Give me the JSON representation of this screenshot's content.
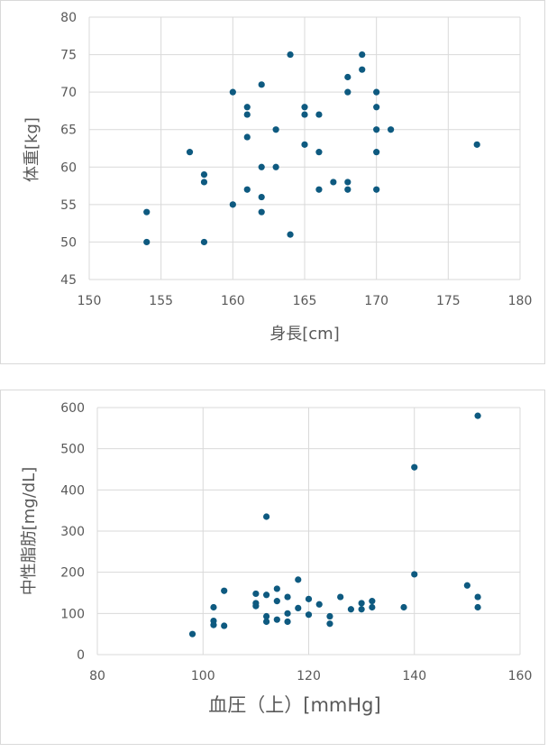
{
  "colors": {
    "marker": "#0e5a80",
    "grid": "#d9d9d9",
    "text": "#595959"
  },
  "chart_data": [
    {
      "type": "scatter",
      "title": "",
      "xlabel": "身長[cm]",
      "ylabel": "体重[kg]",
      "xlim": [
        150,
        180
      ],
      "ylim": [
        45,
        80
      ],
      "xticks": [
        "150",
        "155",
        "160",
        "165",
        "170",
        "175",
        "180"
      ],
      "yticks": [
        "45",
        "50",
        "55",
        "60",
        "65",
        "70",
        "75",
        "80"
      ],
      "grid": true,
      "legend": "none",
      "points": [
        {
          "x": 154,
          "y": 54
        },
        {
          "x": 154,
          "y": 50
        },
        {
          "x": 157,
          "y": 62
        },
        {
          "x": 158,
          "y": 59
        },
        {
          "x": 158,
          "y": 58
        },
        {
          "x": 158,
          "y": 50
        },
        {
          "x": 160,
          "y": 70
        },
        {
          "x": 160,
          "y": 55
        },
        {
          "x": 161,
          "y": 68
        },
        {
          "x": 161,
          "y": 67
        },
        {
          "x": 161,
          "y": 64
        },
        {
          "x": 161,
          "y": 57
        },
        {
          "x": 162,
          "y": 71
        },
        {
          "x": 162,
          "y": 60
        },
        {
          "x": 162,
          "y": 56
        },
        {
          "x": 162,
          "y": 54
        },
        {
          "x": 163,
          "y": 65
        },
        {
          "x": 163,
          "y": 60
        },
        {
          "x": 164,
          "y": 75
        },
        {
          "x": 164,
          "y": 51
        },
        {
          "x": 165,
          "y": 68
        },
        {
          "x": 165,
          "y": 67
        },
        {
          "x": 165,
          "y": 63
        },
        {
          "x": 166,
          "y": 67
        },
        {
          "x": 166,
          "y": 62
        },
        {
          "x": 166,
          "y": 57
        },
        {
          "x": 167,
          "y": 58
        },
        {
          "x": 168,
          "y": 72
        },
        {
          "x": 168,
          "y": 70
        },
        {
          "x": 168,
          "y": 58
        },
        {
          "x": 168,
          "y": 57
        },
        {
          "x": 169,
          "y": 75
        },
        {
          "x": 169,
          "y": 73
        },
        {
          "x": 170,
          "y": 70
        },
        {
          "x": 170,
          "y": 68
        },
        {
          "x": 170,
          "y": 65
        },
        {
          "x": 170,
          "y": 62
        },
        {
          "x": 170,
          "y": 57
        },
        {
          "x": 171,
          "y": 65
        },
        {
          "x": 177,
          "y": 63
        }
      ]
    },
    {
      "type": "scatter",
      "title": "",
      "xlabel": "血圧（上）[mmHg]",
      "ylabel": "中性脂肪[mg/dL]",
      "xlim": [
        80,
        160
      ],
      "ylim": [
        0,
        600
      ],
      "xticks": [
        "80",
        "100",
        "120",
        "140",
        "160"
      ],
      "yticks": [
        "0",
        "100",
        "200",
        "300",
        "400",
        "500",
        "600"
      ],
      "grid": true,
      "legend": "none",
      "points": [
        {
          "x": 98,
          "y": 50
        },
        {
          "x": 102,
          "y": 115
        },
        {
          "x": 102,
          "y": 82
        },
        {
          "x": 102,
          "y": 72
        },
        {
          "x": 104,
          "y": 155
        },
        {
          "x": 104,
          "y": 70
        },
        {
          "x": 110,
          "y": 148
        },
        {
          "x": 110,
          "y": 125
        },
        {
          "x": 110,
          "y": 118
        },
        {
          "x": 112,
          "y": 335
        },
        {
          "x": 112,
          "y": 145
        },
        {
          "x": 112,
          "y": 93
        },
        {
          "x": 112,
          "y": 80
        },
        {
          "x": 114,
          "y": 160
        },
        {
          "x": 114,
          "y": 130
        },
        {
          "x": 114,
          "y": 85
        },
        {
          "x": 116,
          "y": 140
        },
        {
          "x": 116,
          "y": 100
        },
        {
          "x": 116,
          "y": 80
        },
        {
          "x": 118,
          "y": 182
        },
        {
          "x": 118,
          "y": 113
        },
        {
          "x": 120,
          "y": 135
        },
        {
          "x": 120,
          "y": 97
        },
        {
          "x": 122,
          "y": 122
        },
        {
          "x": 124,
          "y": 93
        },
        {
          "x": 124,
          "y": 75
        },
        {
          "x": 126,
          "y": 140
        },
        {
          "x": 128,
          "y": 110
        },
        {
          "x": 130,
          "y": 125
        },
        {
          "x": 130,
          "y": 110
        },
        {
          "x": 132,
          "y": 130
        },
        {
          "x": 132,
          "y": 115
        },
        {
          "x": 138,
          "y": 115
        },
        {
          "x": 140,
          "y": 455
        },
        {
          "x": 140,
          "y": 195
        },
        {
          "x": 150,
          "y": 168
        },
        {
          "x": 152,
          "y": 580
        },
        {
          "x": 152,
          "y": 140
        },
        {
          "x": 152,
          "y": 115
        }
      ]
    }
  ]
}
